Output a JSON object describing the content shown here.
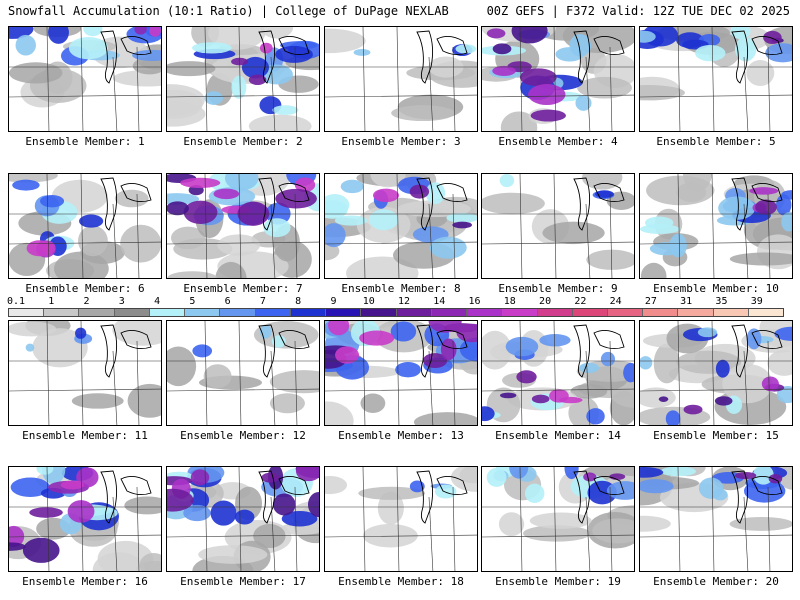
{
  "header": {
    "left_title": "Snowfall Accumulation (10:1 Ratio) | College of DuPage NEXLAB",
    "right_title": "00Z GEFS | F372 Valid: 12Z TUE DEC 02 2025"
  },
  "colorbar": {
    "labels": [
      "0.1",
      "1",
      "2",
      "3",
      "4",
      "5",
      "6",
      "7",
      "8",
      "9",
      "10",
      "12",
      "14",
      "16",
      "18",
      "20",
      "22",
      "24",
      "27",
      "31",
      "35",
      "39"
    ],
    "colors": [
      "#e8e8e8",
      "#c8c8c8",
      "#a8a8a8",
      "#8c8c8c",
      "#b4f0f8",
      "#8cc8f0",
      "#6496f0",
      "#3c64f0",
      "#1e32d2",
      "#2814b4",
      "#46148c",
      "#6e1e9c",
      "#8c28b4",
      "#aa32c8",
      "#c83cc8",
      "#d23c8c",
      "#dc4678",
      "#e66482",
      "#f08c8c",
      "#f5aaa0",
      "#f8c8b4",
      "#fae6d2"
    ]
  },
  "panels": [
    {
      "label": "Ensemble Member: 1",
      "coverage": "north"
    },
    {
      "label": "Ensemble Member: 2",
      "coverage": "broad"
    },
    {
      "label": "Ensemble Member: 3",
      "coverage": "light"
    },
    {
      "label": "Ensemble Member: 4",
      "coverage": "heavy-west"
    },
    {
      "label": "Ensemble Member: 5",
      "coverage": "north"
    },
    {
      "label": "Ensemble Member: 6",
      "coverage": "west"
    },
    {
      "label": "Ensemble Member: 7",
      "coverage": "heavy-north"
    },
    {
      "label": "Ensemble Member: 8",
      "coverage": "broad"
    },
    {
      "label": "Ensemble Member: 9",
      "coverage": "light"
    },
    {
      "label": "Ensemble Member: 10",
      "coverage": "broad"
    },
    {
      "label": "Ensemble Member: 11",
      "coverage": "light"
    },
    {
      "label": "Ensemble Member: 12",
      "coverage": "light"
    },
    {
      "label": "Ensemble Member: 13",
      "coverage": "heavy-north"
    },
    {
      "label": "Ensemble Member: 14",
      "coverage": "band"
    },
    {
      "label": "Ensemble Member: 15",
      "coverage": "band"
    },
    {
      "label": "Ensemble Member: 16",
      "coverage": "heavy-west"
    },
    {
      "label": "Ensemble Member: 17",
      "coverage": "heavy-north"
    },
    {
      "label": "Ensemble Member: 18",
      "coverage": "light"
    },
    {
      "label": "Ensemble Member: 19",
      "coverage": "north"
    },
    {
      "label": "Ensemble Member: 20",
      "coverage": "north"
    }
  ]
}
